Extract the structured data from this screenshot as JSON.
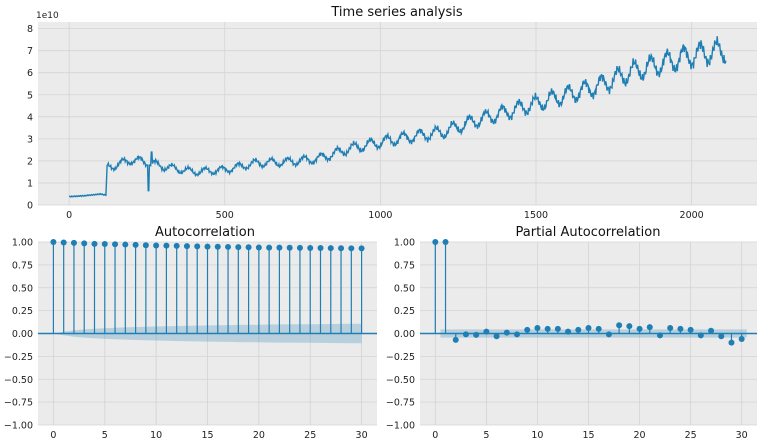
{
  "chart_data": [
    {
      "type": "line",
      "title": "Time series analysis",
      "xlabel": "",
      "ylabel": "",
      "offset_label": "1e10",
      "xlim": [
        -100,
        2210
      ],
      "ylim": [
        0,
        8.3
      ],
      "xticks": [
        0,
        500,
        1000,
        1500,
        2000
      ],
      "yticks": [
        0,
        1,
        2,
        3,
        4,
        5,
        6,
        7,
        8
      ],
      "grid": true,
      "color": "#1f7fb4",
      "anchors": [
        {
          "x": 0,
          "y": 0.38
        },
        {
          "x": 50,
          "y": 0.42
        },
        {
          "x": 100,
          "y": 0.5
        },
        {
          "x": 118,
          "y": 0.45
        },
        {
          "x": 122,
          "y": 1.7
        },
        {
          "x": 150,
          "y": 1.8
        },
        {
          "x": 200,
          "y": 2.05
        },
        {
          "x": 250,
          "y": 1.95
        },
        {
          "x": 300,
          "y": 1.75
        },
        {
          "x": 400,
          "y": 1.5
        },
        {
          "x": 500,
          "y": 1.6
        },
        {
          "x": 600,
          "y": 1.9
        },
        {
          "x": 700,
          "y": 1.95
        },
        {
          "x": 800,
          "y": 2.1
        },
        {
          "x": 900,
          "y": 2.55
        },
        {
          "x": 1000,
          "y": 2.85
        },
        {
          "x": 1100,
          "y": 3.1
        },
        {
          "x": 1200,
          "y": 3.3
        },
        {
          "x": 1300,
          "y": 3.8
        },
        {
          "x": 1400,
          "y": 4.2
        },
        {
          "x": 1500,
          "y": 4.6
        },
        {
          "x": 1600,
          "y": 5.0
        },
        {
          "x": 1700,
          "y": 5.4
        },
        {
          "x": 1800,
          "y": 6.0
        },
        {
          "x": 1900,
          "y": 6.4
        },
        {
          "x": 2000,
          "y": 6.8
        },
        {
          "x": 2050,
          "y": 6.9
        },
        {
          "x": 2110,
          "y": 7.0
        }
      ],
      "spikes": [
        {
          "x": 255,
          "y": 0.65
        },
        {
          "x": 265,
          "y": 2.4
        }
      ]
    },
    {
      "type": "stem",
      "title": "Autocorrelation",
      "xlim": [
        -1.5,
        31.5
      ],
      "ylim": [
        -1.0,
        1.0
      ],
      "xticks": [
        0,
        5,
        10,
        15,
        20,
        25,
        30
      ],
      "yticks": [
        -1.0,
        -0.75,
        -0.5,
        -0.25,
        0.0,
        0.25,
        0.5,
        0.75,
        1.0
      ],
      "ytick_labels": [
        "−1.00",
        "−0.75",
        "−0.50",
        "−0.25",
        "0.00",
        "0.25",
        "0.50",
        "0.75",
        "1.00"
      ],
      "grid": true,
      "color": "#1f7fb4",
      "lags": [
        0,
        1,
        2,
        3,
        4,
        5,
        6,
        7,
        8,
        9,
        10,
        11,
        12,
        13,
        14,
        15,
        16,
        17,
        18,
        19,
        20,
        21,
        22,
        23,
        24,
        25,
        26,
        27,
        28,
        29,
        30
      ],
      "values": [
        1.0,
        0.995,
        0.99,
        0.985,
        0.98,
        0.978,
        0.975,
        0.972,
        0.968,
        0.965,
        0.962,
        0.96,
        0.958,
        0.955,
        0.952,
        0.95,
        0.948,
        0.946,
        0.944,
        0.942,
        0.94,
        0.939,
        0.938,
        0.937,
        0.936,
        0.935,
        0.934,
        0.933,
        0.932,
        0.931,
        0.93
      ],
      "confint_upper": [
        0.0,
        0.02,
        0.035,
        0.045,
        0.052,
        0.058,
        0.063,
        0.067,
        0.071,
        0.074,
        0.077,
        0.08,
        0.082,
        0.084,
        0.086,
        0.088,
        0.09,
        0.092,
        0.094,
        0.095,
        0.096,
        0.098,
        0.099,
        0.1,
        0.101,
        0.102,
        0.103,
        0.104,
        0.105,
        0.106,
        0.107
      ]
    },
    {
      "type": "stem",
      "title": "Partial Autocorrelation",
      "xlim": [
        -1.5,
        31.5
      ],
      "ylim": [
        -1.0,
        1.0
      ],
      "xticks": [
        0,
        5,
        10,
        15,
        20,
        25,
        30
      ],
      "yticks": [
        -1.0,
        -0.75,
        -0.5,
        -0.25,
        0.0,
        0.25,
        0.5,
        0.75,
        1.0
      ],
      "ytick_labels": [
        "−1.00",
        "−0.75",
        "−0.50",
        "−0.25",
        "0.00",
        "0.25",
        "0.50",
        "0.75",
        "1.00"
      ],
      "grid": true,
      "color": "#1f7fb4",
      "lags": [
        0,
        1,
        2,
        3,
        4,
        5,
        6,
        7,
        8,
        9,
        10,
        11,
        12,
        13,
        14,
        15,
        16,
        17,
        18,
        19,
        20,
        21,
        22,
        23,
        24,
        25,
        26,
        27,
        28,
        29,
        30
      ],
      "values": [
        1.0,
        1.0,
        -0.07,
        -0.01,
        -0.015,
        0.02,
        -0.03,
        0.01,
        -0.01,
        0.04,
        0.06,
        0.05,
        0.05,
        0.02,
        0.04,
        0.06,
        0.05,
        -0.01,
        0.09,
        0.08,
        0.05,
        0.07,
        -0.02,
        0.06,
        0.05,
        0.04,
        -0.02,
        0.03,
        -0.03,
        -0.1,
        -0.06
      ],
      "confint_upper": 0.045
    }
  ]
}
